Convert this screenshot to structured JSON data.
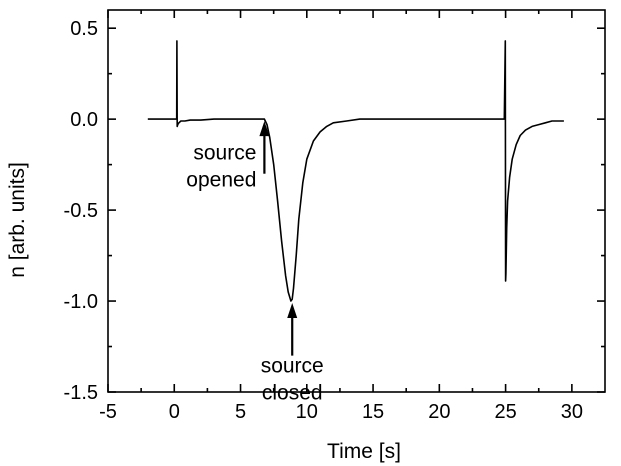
{
  "chart_data": {
    "type": "line",
    "title": "",
    "xlabel": "Time [s]",
    "ylabel": "n [arb. units]",
    "xlim": [
      -5,
      32.5
    ],
    "ylim": [
      -1.5,
      0.6
    ],
    "xticks": [
      -5,
      0,
      5,
      10,
      15,
      20,
      25,
      30
    ],
    "yticks": [
      0.5,
      0.0,
      -0.5,
      -1.0,
      -1.5
    ],
    "xtick_labels": [
      "-5",
      "0",
      "5",
      "10",
      "15",
      "20",
      "25",
      "30"
    ],
    "ytick_labels": [
      "0.5",
      "0.0",
      "-0.5",
      "-1.0",
      "-1.5"
    ],
    "grid": false,
    "legend": "none",
    "series": [
      {
        "color": "#000000",
        "x": [
          -2.0,
          -1.0,
          0.0,
          0.18,
          0.2,
          0.22,
          0.26,
          0.35,
          0.5,
          0.8,
          1.2,
          2.0,
          3.0,
          4.0,
          5.0,
          6.0,
          6.5,
          6.8,
          7.0,
          7.2,
          7.5,
          7.8,
          8.1,
          8.4,
          8.6,
          8.8,
          8.9,
          9.0,
          9.2,
          9.4,
          9.7,
          10.0,
          10.5,
          11.0,
          11.5,
          12.0,
          13.0,
          14.0,
          15.0,
          17.0,
          20.0,
          23.0,
          24.9,
          24.98,
          25.0,
          25.02,
          25.08,
          25.15,
          25.3,
          25.5,
          25.8,
          26.1,
          26.5,
          27.0,
          27.5,
          28.0,
          28.5,
          29.0,
          29.4
        ],
        "y": [
          0.0,
          0.0,
          0.0,
          0.0,
          0.43,
          -0.04,
          -0.03,
          -0.02,
          -0.01,
          -0.01,
          -0.005,
          -0.005,
          0.0,
          0.0,
          0.0,
          0.0,
          0.0,
          0.0,
          -0.03,
          -0.1,
          -0.25,
          -0.45,
          -0.67,
          -0.86,
          -0.95,
          -1.0,
          -0.99,
          -0.93,
          -0.75,
          -0.55,
          -0.35,
          -0.22,
          -0.12,
          -0.07,
          -0.04,
          -0.02,
          -0.01,
          0.0,
          0.0,
          0.0,
          0.0,
          0.0,
          0.0,
          0.43,
          -0.89,
          -0.85,
          -0.6,
          -0.45,
          -0.32,
          -0.22,
          -0.14,
          -0.09,
          -0.06,
          -0.04,
          -0.03,
          -0.02,
          -0.01,
          -0.01,
          -0.01
        ]
      }
    ],
    "annotations": [
      {
        "lines": [
          "source",
          "opened"
        ],
        "arrow_to": [
          6.8,
          0.0
        ],
        "arrow_from": [
          6.8,
          -0.3
        ]
      },
      {
        "lines": [
          "source",
          "closed"
        ],
        "arrow_to": [
          8.9,
          -1.0
        ],
        "arrow_from": [
          8.9,
          -1.3
        ]
      }
    ]
  }
}
